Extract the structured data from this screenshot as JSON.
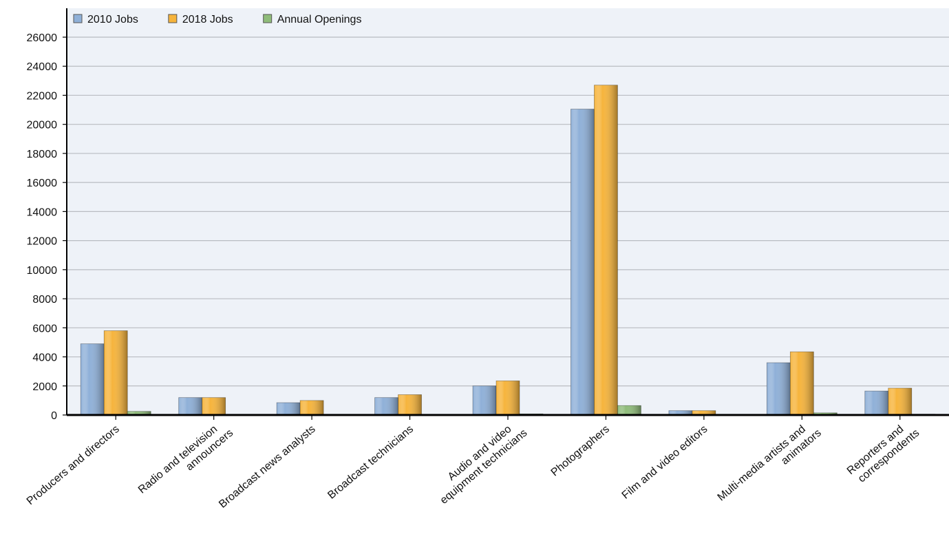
{
  "chart_data": {
    "type": "bar",
    "title": "",
    "xlabel": "",
    "ylabel": "",
    "categories": [
      [
        "Producers and directors"
      ],
      [
        "Radio and television",
        "announcers"
      ],
      [
        "Broadcast news analysts"
      ],
      [
        "Broadcast technicians"
      ],
      [
        "Audio and video",
        "equipment technicians"
      ],
      [
        "Photographers"
      ],
      [
        "Film and video editors"
      ],
      [
        "Multi-media artists and",
        "animators"
      ],
      [
        "Reporters and",
        "correspondents"
      ]
    ],
    "series": [
      {
        "name": "2010 Jobs",
        "color": "#8fb0d8",
        "values": [
          4900,
          1200,
          850,
          1200,
          2000,
          21050,
          300,
          3600,
          1650
        ]
      },
      {
        "name": "2018 Jobs",
        "color": "#f6b43c",
        "values": [
          5800,
          1200,
          1000,
          1400,
          2350,
          22700,
          300,
          4350,
          1850
        ]
      },
      {
        "name": "Annual Openings",
        "color": "#8fbc7a",
        "values": [
          250,
          30,
          30,
          40,
          80,
          650,
          10,
          150,
          60
        ]
      }
    ],
    "ylim": [
      0,
      26000
    ],
    "yticks": [
      0,
      2000,
      4000,
      6000,
      8000,
      10000,
      12000,
      14000,
      16000,
      18000,
      20000,
      22000,
      24000,
      26000
    ],
    "grid": true,
    "legend_position": "top-left"
  }
}
